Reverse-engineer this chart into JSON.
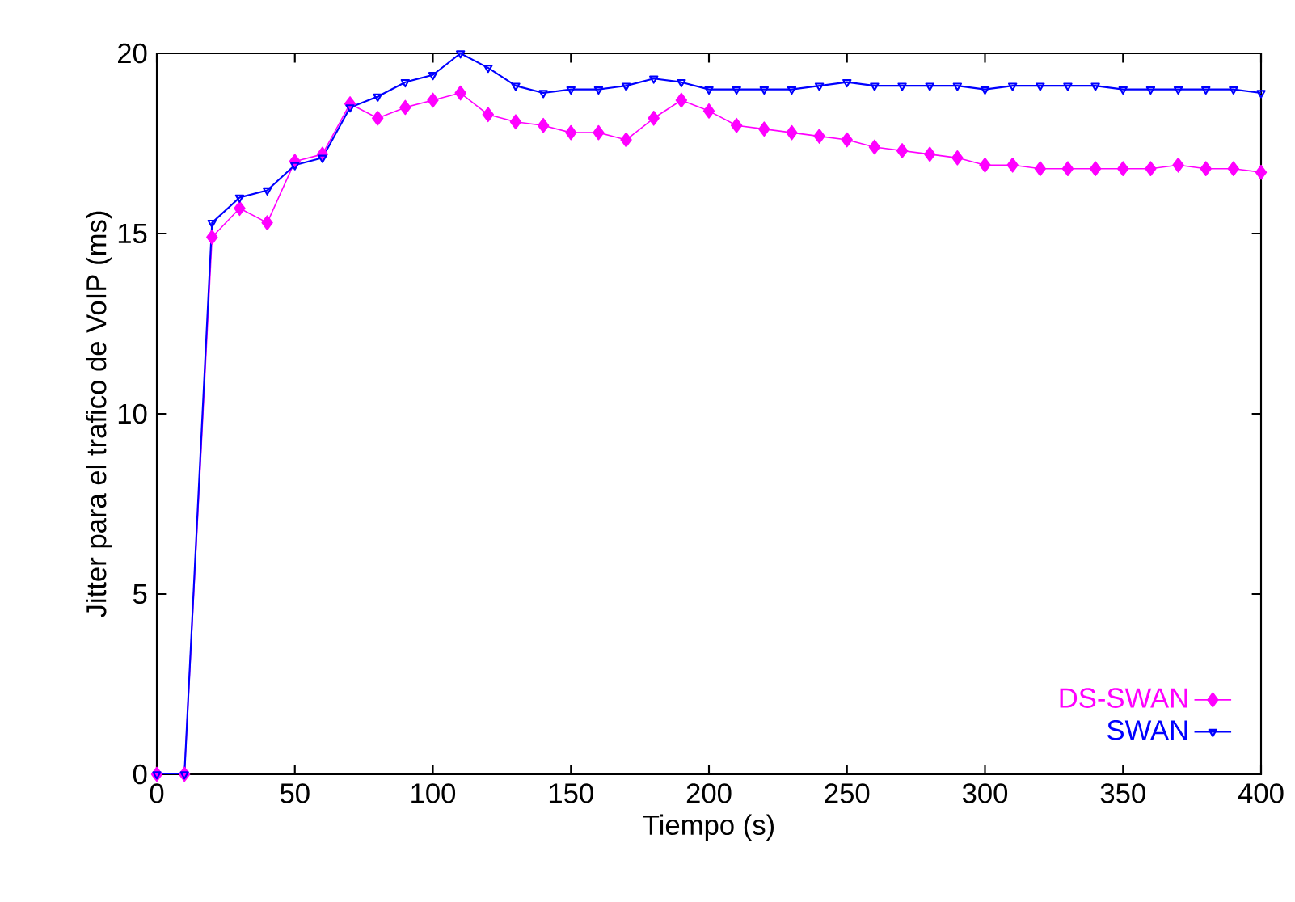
{
  "chart_data": {
    "type": "line",
    "xlabel": "Tiempo (s)",
    "ylabel": "Jitter para el trafico de VoIP (ms)",
    "x": [
      0,
      10,
      20,
      30,
      40,
      50,
      60,
      70,
      80,
      90,
      100,
      110,
      120,
      130,
      140,
      150,
      160,
      170,
      180,
      190,
      200,
      210,
      220,
      230,
      240,
      250,
      260,
      270,
      280,
      290,
      300,
      310,
      320,
      330,
      340,
      350,
      360,
      370,
      380,
      390,
      400
    ],
    "series": [
      {
        "name": "DS-SWAN",
        "color": "#ff00ff",
        "marker": "diamond",
        "values": [
          0,
          0,
          14.9,
          15.7,
          15.3,
          17.0,
          17.2,
          18.6,
          18.2,
          18.5,
          18.7,
          18.9,
          18.3,
          18.1,
          18.0,
          17.8,
          17.8,
          17.6,
          18.2,
          18.7,
          18.4,
          18.0,
          17.9,
          17.8,
          17.7,
          17.6,
          17.4,
          17.3,
          17.2,
          17.1,
          16.9,
          16.9,
          16.8,
          16.8,
          16.8,
          16.8,
          16.8,
          16.9,
          16.8,
          16.8,
          16.7
        ]
      },
      {
        "name": "SWAN",
        "color": "#0000ff",
        "marker": "triangle",
        "values": [
          0,
          0,
          15.3,
          16.0,
          16.2,
          16.9,
          17.1,
          18.5,
          18.8,
          19.2,
          19.4,
          20.0,
          19.6,
          19.1,
          18.9,
          19.0,
          19.0,
          19.1,
          19.3,
          19.2,
          19.0,
          19.0,
          19.0,
          19.0,
          19.1,
          19.2,
          19.1,
          19.1,
          19.1,
          19.1,
          19.0,
          19.1,
          19.1,
          19.1,
          19.1,
          19.0,
          19.0,
          19.0,
          19.0,
          19.0,
          18.9
        ]
      }
    ],
    "xlim": [
      0,
      400
    ],
    "ylim": [
      0,
      20
    ],
    "xticks": [
      0,
      50,
      100,
      150,
      200,
      250,
      300,
      350,
      400
    ],
    "yticks": [
      0,
      5,
      10,
      15,
      20
    ],
    "grid": false,
    "legend": "bottom right"
  }
}
